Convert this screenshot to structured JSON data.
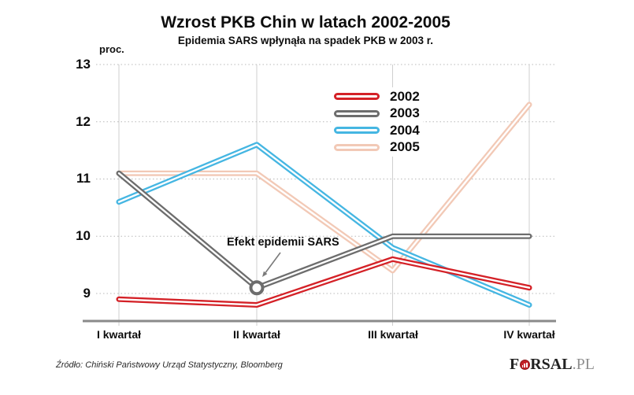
{
  "chart_data": {
    "type": "line",
    "title": "Wzrost PKB Chin w latach 2002-2005",
    "subtitle": "Epidemia SARS wpłynąła na spadek PKB w 2003 r.",
    "ylabel": "proc.",
    "categories": [
      "I kwartał",
      "II kwartał",
      "III kwartał",
      "IV kwartał"
    ],
    "yticks": [
      13,
      12,
      11,
      10,
      9
    ],
    "ylim": [
      8.5,
      13
    ],
    "grid": {
      "horizontal": "dotted",
      "vertical": "solid"
    },
    "legend_position": "top-right",
    "series": [
      {
        "name": "2002",
        "color": "#d42127",
        "values": [
          8.9,
          8.8,
          9.6,
          9.1
        ]
      },
      {
        "name": "2003",
        "color": "#6d6d6d",
        "values": [
          11.1,
          9.1,
          10.0,
          10.0
        ]
      },
      {
        "name": "2004",
        "color": "#45b6e2",
        "values": [
          10.6,
          11.6,
          9.8,
          8.8
        ]
      },
      {
        "name": "2005",
        "color": "#f2c9b6",
        "values": [
          11.1,
          11.1,
          9.4,
          12.3
        ]
      }
    ],
    "annotation": {
      "text": "Efekt epidemii SARS",
      "target_series": "2003",
      "target_point_index": 1
    }
  },
  "footer": {
    "source": "Źródło: Chiński Państwowy Urząd Statystyczny, Bloomberg"
  },
  "logo": {
    "prefix": "F",
    "suffix": "RSAL",
    "domain": ".PL"
  }
}
